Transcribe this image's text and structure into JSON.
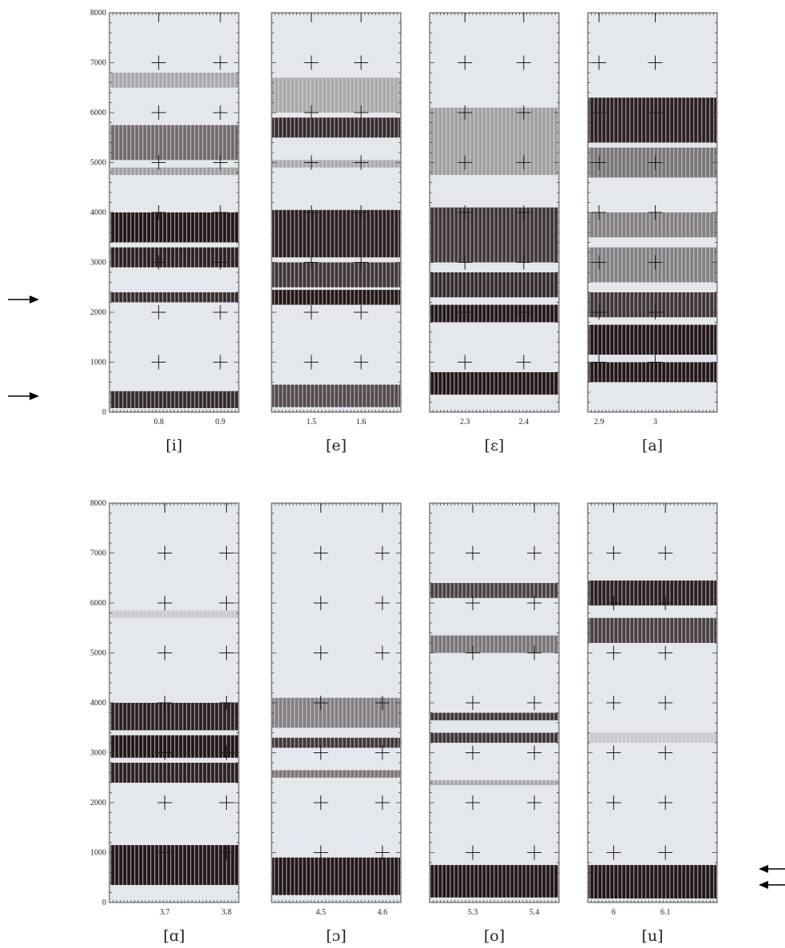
{
  "chart_data": {
    "type": "heatmap",
    "description": "spectrograms",
    "y_ticks": [
      "0",
      "1000",
      "2000",
      "3000",
      "4000",
      "5000",
      "6000",
      "7000",
      "8000"
    ],
    "ylim": [
      0,
      8000
    ],
    "grid": "cross markers",
    "panels": [
      {
        "label": "[i]",
        "xlim": [
          0.72,
          0.93
        ],
        "x_ticks": [
          {
            "v": 0.8,
            "t": "0.8"
          },
          {
            "v": 0.9,
            "t": "0.9"
          }
        ],
        "bands": [
          {
            "lo": 80,
            "hi": 420,
            "intensity": 0.9
          },
          {
            "lo": 2200,
            "hi": 2400,
            "intensity": 0.9
          },
          {
            "lo": 2900,
            "hi": 3300,
            "intensity": 0.95
          },
          {
            "lo": 3400,
            "hi": 4000,
            "intensity": 1.0
          },
          {
            "lo": 4750,
            "hi": 4900,
            "intensity": 0.35
          },
          {
            "lo": 5050,
            "hi": 5750,
            "intensity": 0.6
          },
          {
            "lo": 6500,
            "hi": 6800,
            "intensity": 0.3
          }
        ]
      },
      {
        "label": "[e]",
        "xlim": [
          1.42,
          1.68
        ],
        "x_ticks": [
          {
            "v": 1.5,
            "t": "1.5"
          },
          {
            "v": 1.6,
            "t": "1.6"
          }
        ],
        "bands": [
          {
            "lo": 100,
            "hi": 550,
            "intensity": 0.75
          },
          {
            "lo": 2150,
            "hi": 2450,
            "intensity": 1.0
          },
          {
            "lo": 2500,
            "hi": 3000,
            "intensity": 0.85
          },
          {
            "lo": 3100,
            "hi": 4050,
            "intensity": 0.95
          },
          {
            "lo": 4900,
            "hi": 5050,
            "intensity": 0.3
          },
          {
            "lo": 5500,
            "hi": 5900,
            "intensity": 0.9
          },
          {
            "lo": 6000,
            "hi": 6700,
            "intensity": 0.3
          }
        ]
      },
      {
        "label": "[ɛ]",
        "xlim": [
          2.24,
          2.46
        ],
        "x_ticks": [
          {
            "v": 2.3,
            "t": "2.3"
          },
          {
            "v": 2.4,
            "t": "2.4"
          }
        ],
        "bands": [
          {
            "lo": 350,
            "hi": 800,
            "intensity": 1.0
          },
          {
            "lo": 1800,
            "hi": 2150,
            "intensity": 1.0
          },
          {
            "lo": 2300,
            "hi": 2800,
            "intensity": 0.9
          },
          {
            "lo": 3000,
            "hi": 4100,
            "intensity": 0.85
          },
          {
            "lo": 4750,
            "hi": 6100,
            "intensity": 0.35
          }
        ]
      },
      {
        "label": "[a]",
        "xlim": [
          2.88,
          3.11
        ],
        "x_ticks": [
          {
            "v": 2.9,
            "t": "2.9"
          },
          {
            "v": 3,
            "t": "3"
          }
        ],
        "bands": [
          {
            "lo": 600,
            "hi": 1000,
            "intensity": 1.0
          },
          {
            "lo": 1150,
            "hi": 1750,
            "intensity": 1.0
          },
          {
            "lo": 1900,
            "hi": 2400,
            "intensity": 0.85
          },
          {
            "lo": 2600,
            "hi": 3300,
            "intensity": 0.5
          },
          {
            "lo": 3500,
            "hi": 4000,
            "intensity": 0.5
          },
          {
            "lo": 4700,
            "hi": 5300,
            "intensity": 0.55
          },
          {
            "lo": 5400,
            "hi": 6300,
            "intensity": 0.95
          }
        ]
      },
      {
        "label": "[ɑ]",
        "xlim": [
          3.61,
          3.82
        ],
        "x_ticks": [
          {
            "v": 3.7,
            "t": "3.7"
          },
          {
            "v": 3.8,
            "t": "3.8"
          }
        ],
        "bands": [
          {
            "lo": 350,
            "hi": 1150,
            "intensity": 1.0
          },
          {
            "lo": 2400,
            "hi": 2800,
            "intensity": 0.95
          },
          {
            "lo": 2900,
            "hi": 3350,
            "intensity": 1.0
          },
          {
            "lo": 3450,
            "hi": 4000,
            "intensity": 0.95
          },
          {
            "lo": 5700,
            "hi": 5850,
            "intensity": 0.15
          }
        ]
      },
      {
        "label": "[ɔ]",
        "xlim": [
          4.42,
          4.63
        ],
        "x_ticks": [
          {
            "v": 4.5,
            "t": "4.5"
          },
          {
            "v": 4.6,
            "t": "4.6"
          }
        ],
        "bands": [
          {
            "lo": 150,
            "hi": 900,
            "intensity": 1.0
          },
          {
            "lo": 2500,
            "hi": 2650,
            "intensity": 0.55
          },
          {
            "lo": 3100,
            "hi": 3300,
            "intensity": 0.85
          },
          {
            "lo": 3500,
            "hi": 4100,
            "intensity": 0.5
          }
        ]
      },
      {
        "label": "[o]",
        "xlim": [
          5.23,
          5.44
        ],
        "x_ticks": [
          {
            "v": 5.3,
            "t": "5.3"
          },
          {
            "v": 5.4,
            "t": "5.4"
          }
        ],
        "bands": [
          {
            "lo": 100,
            "hi": 750,
            "intensity": 1.0
          },
          {
            "lo": 2350,
            "hi": 2450,
            "intensity": 0.3
          },
          {
            "lo": 3200,
            "hi": 3400,
            "intensity": 0.85
          },
          {
            "lo": 3650,
            "hi": 3800,
            "intensity": 0.85
          },
          {
            "lo": 5000,
            "hi": 5350,
            "intensity": 0.55
          },
          {
            "lo": 6100,
            "hi": 6400,
            "intensity": 0.8
          }
        ]
      },
      {
        "label": "[u]",
        "xlim": [
          5.95,
          6.2
        ],
        "x_ticks": [
          {
            "v": 6,
            "t": "6"
          },
          {
            "v": 6.1,
            "t": "6.1"
          }
        ],
        "bands": [
          {
            "lo": 80,
            "hi": 750,
            "intensity": 1.0
          },
          {
            "lo": 3200,
            "hi": 3400,
            "intensity": 0.15
          },
          {
            "lo": 5200,
            "hi": 5700,
            "intensity": 0.8
          },
          {
            "lo": 5950,
            "hi": 6450,
            "intensity": 0.95
          }
        ]
      }
    ]
  },
  "colors": {
    "panel_bg": "#e4e8ec",
    "band_dark": "#231617",
    "frame": "#444444",
    "text": "#222222"
  }
}
